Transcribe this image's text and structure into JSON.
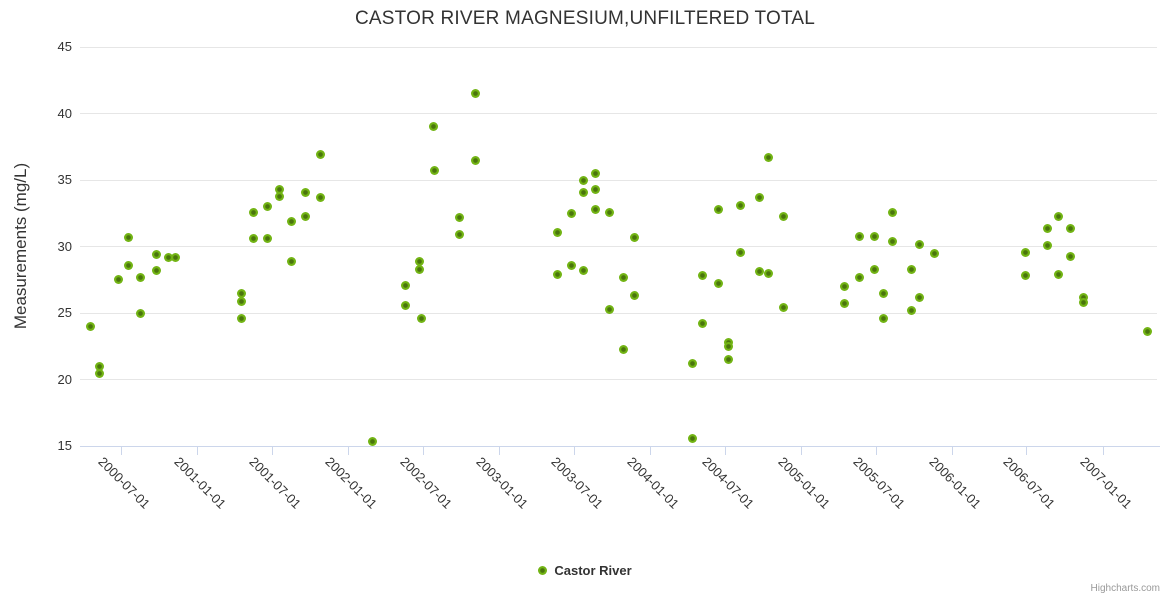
{
  "title": "CASTOR RIVER MAGNESIUM,UNFILTERED TOTAL",
  "y_axis": {
    "title": "Measurements (mg/L)"
  },
  "legend": {
    "series_label": "Castor River"
  },
  "credits": "Highcharts.com",
  "colors": {
    "point": "#72b414",
    "point_center": "#4a750d",
    "grid": "#e6e6e6",
    "axis_line": "#ccd6eb",
    "text": "#333333",
    "credits_text": "#999999",
    "background": "#ffffff"
  },
  "chart_data": {
    "type": "scatter",
    "title": "CASTOR RIVER MAGNESIUM,UNFILTERED TOTAL",
    "xlabel": "",
    "ylabel": "Measurements (mg/L)",
    "ylim": [
      15,
      45
    ],
    "y_ticks": [
      45,
      40,
      35,
      30,
      25,
      20,
      15
    ],
    "x_ticks": [
      "2000-07-01",
      "2001-01-01",
      "2001-07-01",
      "2002-01-01",
      "2002-07-01",
      "2003-01-01",
      "2003-07-01",
      "2004-01-01",
      "2004-07-01",
      "2005-01-01",
      "2005-07-01",
      "2006-01-01",
      "2006-07-01",
      "2007-01-01"
    ],
    "x_tick_rotation": 45,
    "grid": true,
    "legend_position": "bottom-center",
    "series": [
      {
        "name": "Castor River",
        "color": "#72b414",
        "points": [
          [
            "2000-04-17",
            24.0
          ],
          [
            "2000-05-09",
            21.0
          ],
          [
            "2000-05-09",
            20.5
          ],
          [
            "2000-06-24",
            27.5
          ],
          [
            "2000-07-18",
            30.7
          ],
          [
            "2000-07-18",
            28.6
          ],
          [
            "2000-08-16",
            27.7
          ],
          [
            "2000-08-16",
            25.0
          ],
          [
            "2000-09-24",
            29.4
          ],
          [
            "2000-09-24",
            28.2
          ],
          [
            "2000-10-25",
            29.2
          ],
          [
            "2000-11-11",
            29.2
          ],
          [
            "2001-04-19",
            26.5
          ],
          [
            "2001-04-19",
            25.9
          ],
          [
            "2001-04-19",
            24.6
          ],
          [
            "2001-05-18",
            32.6
          ],
          [
            "2001-05-18",
            30.6
          ],
          [
            "2001-06-21",
            33.0
          ],
          [
            "2001-06-21",
            30.6
          ],
          [
            "2001-07-20",
            34.3
          ],
          [
            "2001-07-20",
            33.8
          ],
          [
            "2001-08-18",
            31.9
          ],
          [
            "2001-08-18",
            28.9
          ],
          [
            "2001-09-20",
            34.1
          ],
          [
            "2001-09-20",
            32.3
          ],
          [
            "2001-10-27",
            36.9
          ],
          [
            "2001-10-27",
            33.7
          ],
          [
            "2002-03-01",
            15.4
          ],
          [
            "2002-05-20",
            27.1
          ],
          [
            "2002-05-20",
            25.6
          ],
          [
            "2002-06-23",
            28.9
          ],
          [
            "2002-06-23",
            28.3
          ],
          [
            "2002-06-28",
            24.6
          ],
          [
            "2002-07-27",
            39.0
          ],
          [
            "2002-07-29",
            35.7
          ],
          [
            "2002-09-28",
            32.2
          ],
          [
            "2002-09-28",
            30.9
          ],
          [
            "2002-11-05",
            41.5
          ],
          [
            "2002-11-05",
            36.5
          ],
          [
            "2003-05-23",
            31.1
          ],
          [
            "2003-05-23",
            27.9
          ],
          [
            "2003-06-25",
            32.5
          ],
          [
            "2003-06-25",
            28.6
          ],
          [
            "2003-07-24",
            35.0
          ],
          [
            "2003-07-24",
            34.1
          ],
          [
            "2003-07-24",
            28.2
          ],
          [
            "2003-08-24",
            35.5
          ],
          [
            "2003-08-24",
            34.3
          ],
          [
            "2003-08-24",
            32.8
          ],
          [
            "2003-09-25",
            32.6
          ],
          [
            "2003-09-25",
            25.3
          ],
          [
            "2003-10-29",
            27.7
          ],
          [
            "2003-10-29",
            22.3
          ],
          [
            "2003-11-25",
            30.7
          ],
          [
            "2003-11-25",
            26.3
          ],
          [
            "2004-04-15",
            21.2
          ],
          [
            "2004-04-15",
            15.6
          ],
          [
            "2004-05-09",
            27.8
          ],
          [
            "2004-05-09",
            24.2
          ],
          [
            "2004-06-15",
            32.8
          ],
          [
            "2004-06-15",
            27.2
          ],
          [
            "2004-07-11",
            22.8
          ],
          [
            "2004-07-11",
            22.5
          ],
          [
            "2004-07-11",
            21.5
          ],
          [
            "2004-08-09",
            33.1
          ],
          [
            "2004-08-09",
            29.6
          ],
          [
            "2004-09-22",
            33.7
          ],
          [
            "2004-09-22",
            28.1
          ],
          [
            "2004-10-16",
            36.7
          ],
          [
            "2004-10-16",
            28.0
          ],
          [
            "2004-11-21",
            32.3
          ],
          [
            "2004-11-21",
            25.4
          ],
          [
            "2005-04-16",
            27.0
          ],
          [
            "2005-04-16",
            25.7
          ],
          [
            "2005-05-23",
            30.8
          ],
          [
            "2005-05-23",
            27.7
          ],
          [
            "2005-06-28",
            30.8
          ],
          [
            "2005-06-28",
            28.3
          ],
          [
            "2005-07-20",
            26.5
          ],
          [
            "2005-07-20",
            24.6
          ],
          [
            "2005-08-12",
            32.6
          ],
          [
            "2005-08-12",
            30.4
          ],
          [
            "2005-09-25",
            28.3
          ],
          [
            "2005-09-25",
            25.2
          ],
          [
            "2005-10-15",
            30.2
          ],
          [
            "2005-10-15",
            26.2
          ],
          [
            "2005-11-20",
            29.5
          ],
          [
            "2006-06-29",
            29.6
          ],
          [
            "2006-06-29",
            27.8
          ],
          [
            "2006-08-21",
            31.4
          ],
          [
            "2006-08-21",
            30.1
          ],
          [
            "2006-09-16",
            32.3
          ],
          [
            "2006-09-16",
            27.9
          ],
          [
            "2006-10-15",
            31.4
          ],
          [
            "2006-10-15",
            29.3
          ],
          [
            "2006-11-16",
            26.2
          ],
          [
            "2006-11-16",
            25.8
          ],
          [
            "2007-04-21",
            23.6
          ]
        ]
      }
    ]
  }
}
